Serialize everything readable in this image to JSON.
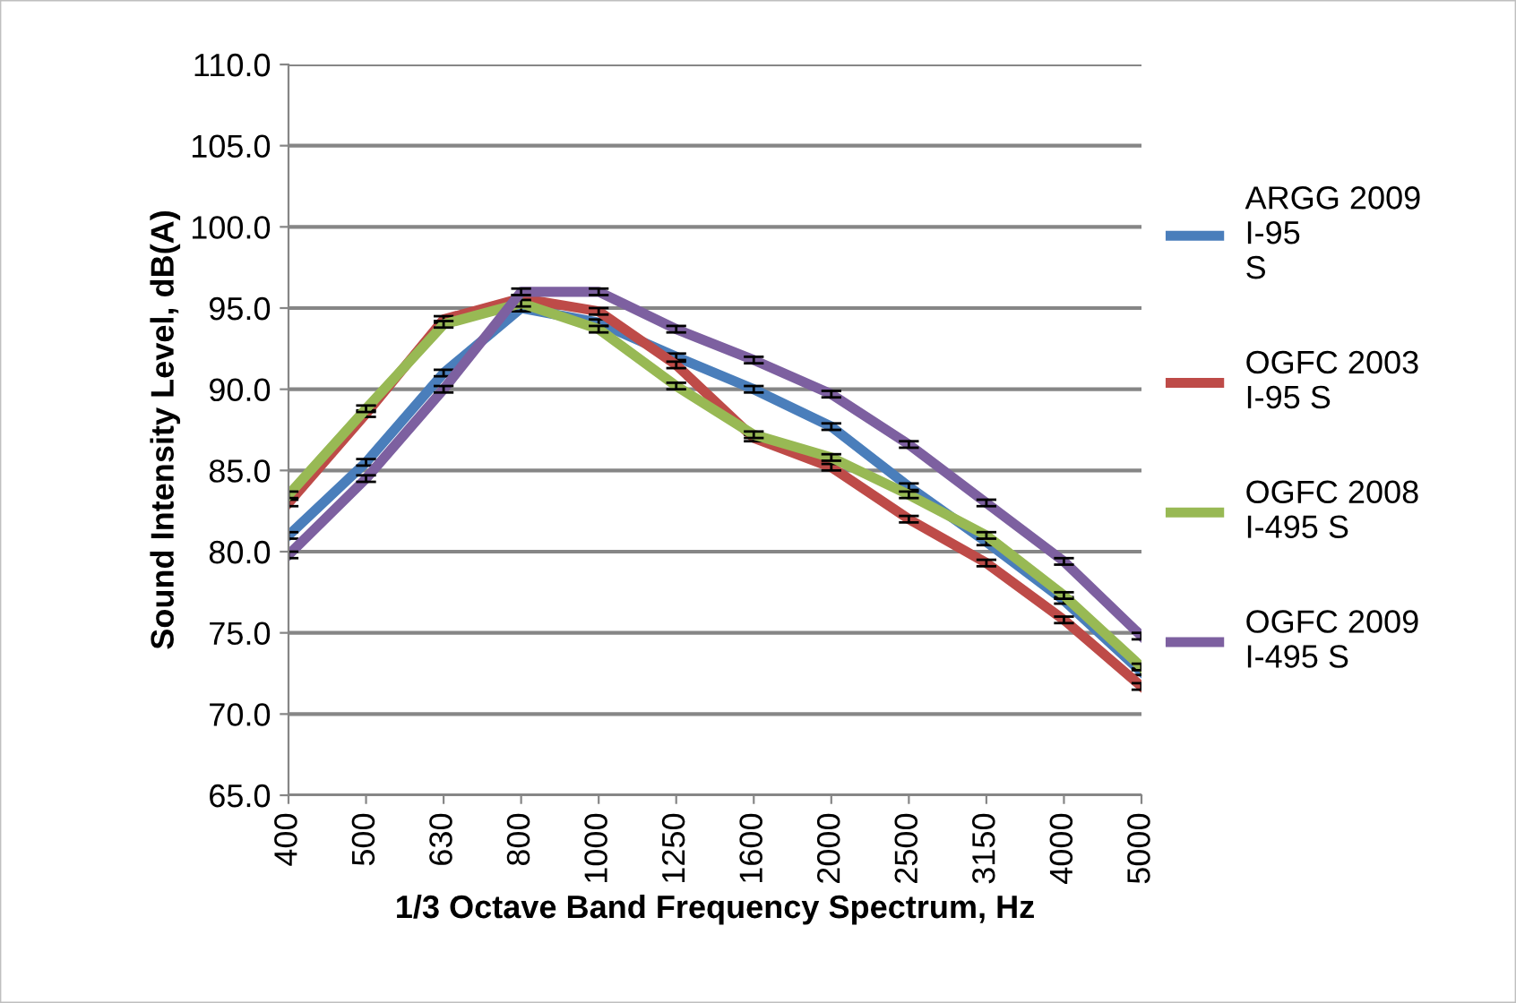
{
  "chart_data": {
    "type": "line",
    "xlabel": "1/3 Octave Band Frequency Spectrum, Hz",
    "ylabel": "Sound Intensity Level, dB(A)",
    "categories": [
      "400",
      "500",
      "630",
      "800",
      "1000",
      "1250",
      "1600",
      "2000",
      "2500",
      "3150",
      "4000",
      "5000"
    ],
    "series": [
      {
        "name": "ARGG 2009\nI-95\nS",
        "color": "#4a7ebb",
        "values": [
          81.0,
          85.5,
          91.0,
          95.0,
          94.1,
          92.0,
          90.0,
          87.7,
          84.0,
          80.6,
          77.0,
          72.6
        ],
        "errors": [
          0.2,
          0.2,
          0.2,
          0.2,
          0.2,
          0.2,
          0.2,
          0.2,
          0.2,
          0.2,
          0.2,
          0.2
        ]
      },
      {
        "name": "OGFC 2003\nI-95 S",
        "color": "#be4b48",
        "values": [
          83.0,
          88.5,
          94.3,
          95.6,
          94.8,
          91.5,
          87.0,
          85.2,
          82.0,
          79.3,
          75.8,
          71.7
        ],
        "errors": [
          0.2,
          0.2,
          0.2,
          0.2,
          0.2,
          0.2,
          0.2,
          0.2,
          0.2,
          0.2,
          0.2,
          0.2
        ]
      },
      {
        "name": "OGFC 2008\nI-495 S",
        "color": "#98b954",
        "values": [
          83.5,
          88.8,
          94.0,
          95.3,
          93.7,
          90.2,
          87.2,
          85.8,
          83.5,
          81.0,
          77.3,
          72.9
        ],
        "errors": [
          0.2,
          0.2,
          0.2,
          0.2,
          0.2,
          0.2,
          0.2,
          0.2,
          0.2,
          0.2,
          0.2,
          0.2
        ]
      },
      {
        "name": "OGFC 2009\nI-495 S",
        "color": "#7d60a0",
        "values": [
          79.8,
          84.5,
          90.0,
          96.0,
          96.0,
          93.7,
          91.8,
          89.7,
          86.6,
          83.0,
          79.4,
          74.8
        ],
        "errors": [
          0.2,
          0.2,
          0.2,
          0.2,
          0.2,
          0.2,
          0.2,
          0.2,
          0.2,
          0.2,
          0.2,
          0.2
        ]
      }
    ],
    "ylim": [
      65,
      110
    ],
    "yticks": [
      {
        "value": 65,
        "label": "65.0"
      },
      {
        "value": 70,
        "label": "70.0"
      },
      {
        "value": 75,
        "label": "75.0"
      },
      {
        "value": 80,
        "label": "80.0"
      },
      {
        "value": 85,
        "label": "85.0"
      },
      {
        "value": 90,
        "label": "90.0"
      },
      {
        "value": 95,
        "label": "95.0"
      },
      {
        "value": 100,
        "label": "100.0"
      },
      {
        "value": 105,
        "label": "105.0"
      },
      {
        "value": 110,
        "label": "110.0"
      }
    ],
    "grid": "y",
    "legend": "right",
    "marker": "none",
    "line_style": "solid"
  }
}
